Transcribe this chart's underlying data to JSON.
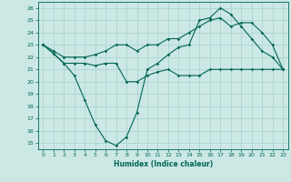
{
  "xlabel": "Humidex (Indice chaleur)",
  "background_color": "#cce8e4",
  "grid_color": "#aad4d0",
  "line_color": "#006655",
  "xlim": [
    -0.5,
    23.5
  ],
  "ylim": [
    14.5,
    26.5
  ],
  "yticks": [
    15,
    16,
    17,
    18,
    19,
    20,
    21,
    22,
    23,
    24,
    25,
    26
  ],
  "xticks": [
    0,
    1,
    2,
    3,
    4,
    5,
    6,
    7,
    8,
    9,
    10,
    11,
    12,
    13,
    14,
    15,
    16,
    17,
    18,
    19,
    20,
    21,
    22,
    23
  ],
  "line1_x": [
    0,
    1,
    2,
    3,
    4,
    5,
    6,
    7,
    8,
    9,
    10,
    11,
    12,
    13,
    14,
    15,
    16,
    17,
    18,
    19,
    20,
    21,
    22,
    23
  ],
  "line1_y": [
    23.0,
    22.3,
    21.5,
    21.5,
    21.5,
    21.3,
    21.5,
    21.5,
    20.0,
    20.0,
    20.5,
    20.8,
    21.0,
    20.5,
    20.5,
    20.5,
    21.0,
    21.0,
    21.0,
    21.0,
    21.0,
    21.0,
    21.0,
    21.0
  ],
  "line2_x": [
    0,
    1,
    2,
    3,
    4,
    5,
    6,
    7,
    8,
    9,
    10,
    11,
    12,
    13,
    14,
    15,
    16,
    17,
    18,
    19,
    20,
    21,
    22,
    23
  ],
  "line2_y": [
    23.0,
    22.5,
    22.0,
    22.0,
    22.0,
    22.2,
    22.5,
    23.0,
    23.0,
    22.5,
    23.0,
    23.0,
    23.5,
    23.5,
    24.0,
    24.5,
    25.0,
    25.2,
    24.5,
    24.8,
    24.8,
    24.0,
    23.0,
    21.0
  ],
  "line3_x": [
    0,
    1,
    2,
    3,
    4,
    5,
    6,
    7,
    8,
    9,
    10,
    11,
    12,
    13,
    14,
    15,
    16,
    17,
    18,
    19,
    20,
    21,
    22,
    23
  ],
  "line3_y": [
    23.0,
    22.3,
    21.5,
    20.5,
    18.5,
    16.5,
    15.2,
    14.8,
    15.5,
    17.5,
    21.0,
    21.5,
    22.2,
    22.8,
    23.0,
    25.0,
    25.2,
    26.0,
    25.5,
    24.5,
    23.5,
    22.5,
    22.0,
    21.0
  ]
}
